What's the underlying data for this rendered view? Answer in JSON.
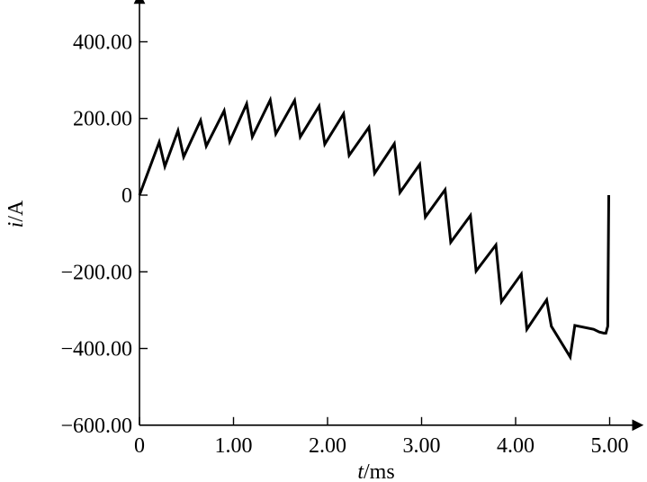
{
  "chart_data": {
    "type": "line",
    "xlabel_italic": "t",
    "xlabel_unit": "/ms",
    "ylabel_italic": "i",
    "ylabel_unit": "/A",
    "xlim": [
      0,
      5.3
    ],
    "ylim": [
      -600,
      500
    ],
    "x_ticks": [
      0,
      1,
      2,
      3,
      4,
      5
    ],
    "x_tick_labels": [
      "0",
      "1.00",
      "2.00",
      "3.00",
      "4.00",
      "5.00"
    ],
    "y_ticks": [
      400,
      200,
      0,
      -200,
      -400,
      -600
    ],
    "y_tick_labels": [
      "400.00",
      "200.00",
      "0",
      "−200.00",
      "−400.00",
      "−600.00"
    ],
    "grid": false,
    "line_color": "#000000",
    "series": [
      {
        "x": [
          0.0,
          0.21,
          0.27,
          0.41,
          0.47,
          0.65,
          0.71,
          0.9,
          0.96,
          1.14,
          1.2,
          1.39,
          1.45,
          1.65,
          1.71,
          1.91,
          1.97,
          2.17,
          2.23,
          2.44,
          2.5,
          2.71,
          2.77,
          2.98,
          3.04,
          3.25,
          3.31,
          3.52,
          3.58,
          3.79,
          3.85,
          4.06,
          4.12,
          4.33,
          4.38,
          4.58,
          4.63,
          4.83,
          4.89,
          4.94,
          4.96,
          4.98,
          4.99,
          4.99
        ],
        "y": [
          0,
          138,
          75,
          168,
          100,
          195,
          128,
          220,
          140,
          238,
          152,
          248,
          160,
          247,
          152,
          232,
          133,
          212,
          104,
          177,
          57,
          134,
          7,
          80,
          -57,
          14,
          -123,
          -53,
          -198,
          -130,
          -278,
          -206,
          -350,
          -273,
          -342,
          -422,
          -340,
          -350,
          -357,
          -360,
          -360,
          -342,
          0,
          0
        ]
      }
    ]
  }
}
